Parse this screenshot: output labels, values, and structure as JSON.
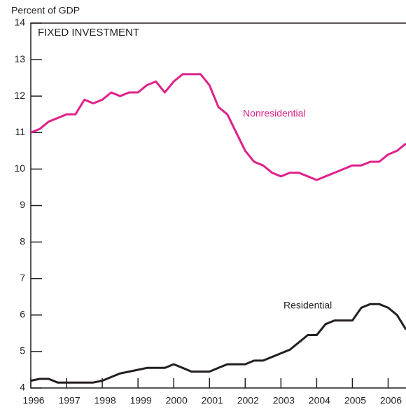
{
  "chart_data": {
    "type": "line",
    "title": "FIXED INVESTMENT",
    "y_axis_label": "Percent of GDP",
    "x": [
      1996,
      1996.25,
      1996.5,
      1996.75,
      1997,
      1997.25,
      1997.5,
      1997.75,
      1998,
      1998.25,
      1998.5,
      1998.75,
      1999,
      1999.25,
      1999.5,
      1999.75,
      2000,
      2000.25,
      2000.5,
      2000.75,
      2001,
      2001.25,
      2001.5,
      2001.75,
      2002,
      2002.25,
      2002.5,
      2002.75,
      2003,
      2003.25,
      2003.5,
      2003.75,
      2004,
      2004.25,
      2004.5,
      2004.75,
      2005,
      2005.25,
      2005.5,
      2005.75,
      2006,
      2006.25,
      2006.5
    ],
    "series": [
      {
        "name": "Nonresidential",
        "color": "#e0218a",
        "values": [
          11.0,
          11.1,
          11.3,
          11.4,
          11.5,
          11.5,
          11.9,
          11.8,
          11.9,
          12.1,
          12.0,
          12.1,
          12.1,
          12.3,
          12.4,
          12.1,
          12.4,
          12.6,
          12.6,
          12.6,
          12.3,
          11.7,
          11.5,
          11.0,
          10.5,
          10.2,
          10.1,
          9.9,
          9.8,
          9.9,
          9.9,
          9.8,
          9.7,
          9.8,
          9.9,
          10.0,
          10.1,
          10.1,
          10.2,
          10.2,
          10.4,
          10.5,
          10.7
        ]
      },
      {
        "name": "Residential",
        "color": "#231f20",
        "values": [
          4.2,
          4.25,
          4.25,
          4.15,
          4.15,
          4.15,
          4.15,
          4.15,
          4.2,
          4.3,
          4.4,
          4.45,
          4.5,
          4.55,
          4.55,
          4.55,
          4.65,
          4.55,
          4.45,
          4.45,
          4.45,
          4.55,
          4.65,
          4.65,
          4.65,
          4.75,
          4.75,
          4.85,
          4.95,
          5.05,
          5.25,
          5.45,
          5.45,
          5.75,
          5.85,
          5.85,
          5.85,
          6.2,
          6.3,
          6.3,
          6.2,
          6.0,
          5.6
        ]
      }
    ],
    "xlim": [
      1996,
      2006.5
    ],
    "xticks": [
      1996,
      1997,
      1998,
      1999,
      2000,
      2001,
      2002,
      2003,
      2004,
      2005,
      2006
    ],
    "ylim": [
      4,
      14
    ],
    "yticks": [
      4,
      5,
      6,
      7,
      8,
      9,
      10,
      11,
      12,
      13,
      14
    ]
  }
}
